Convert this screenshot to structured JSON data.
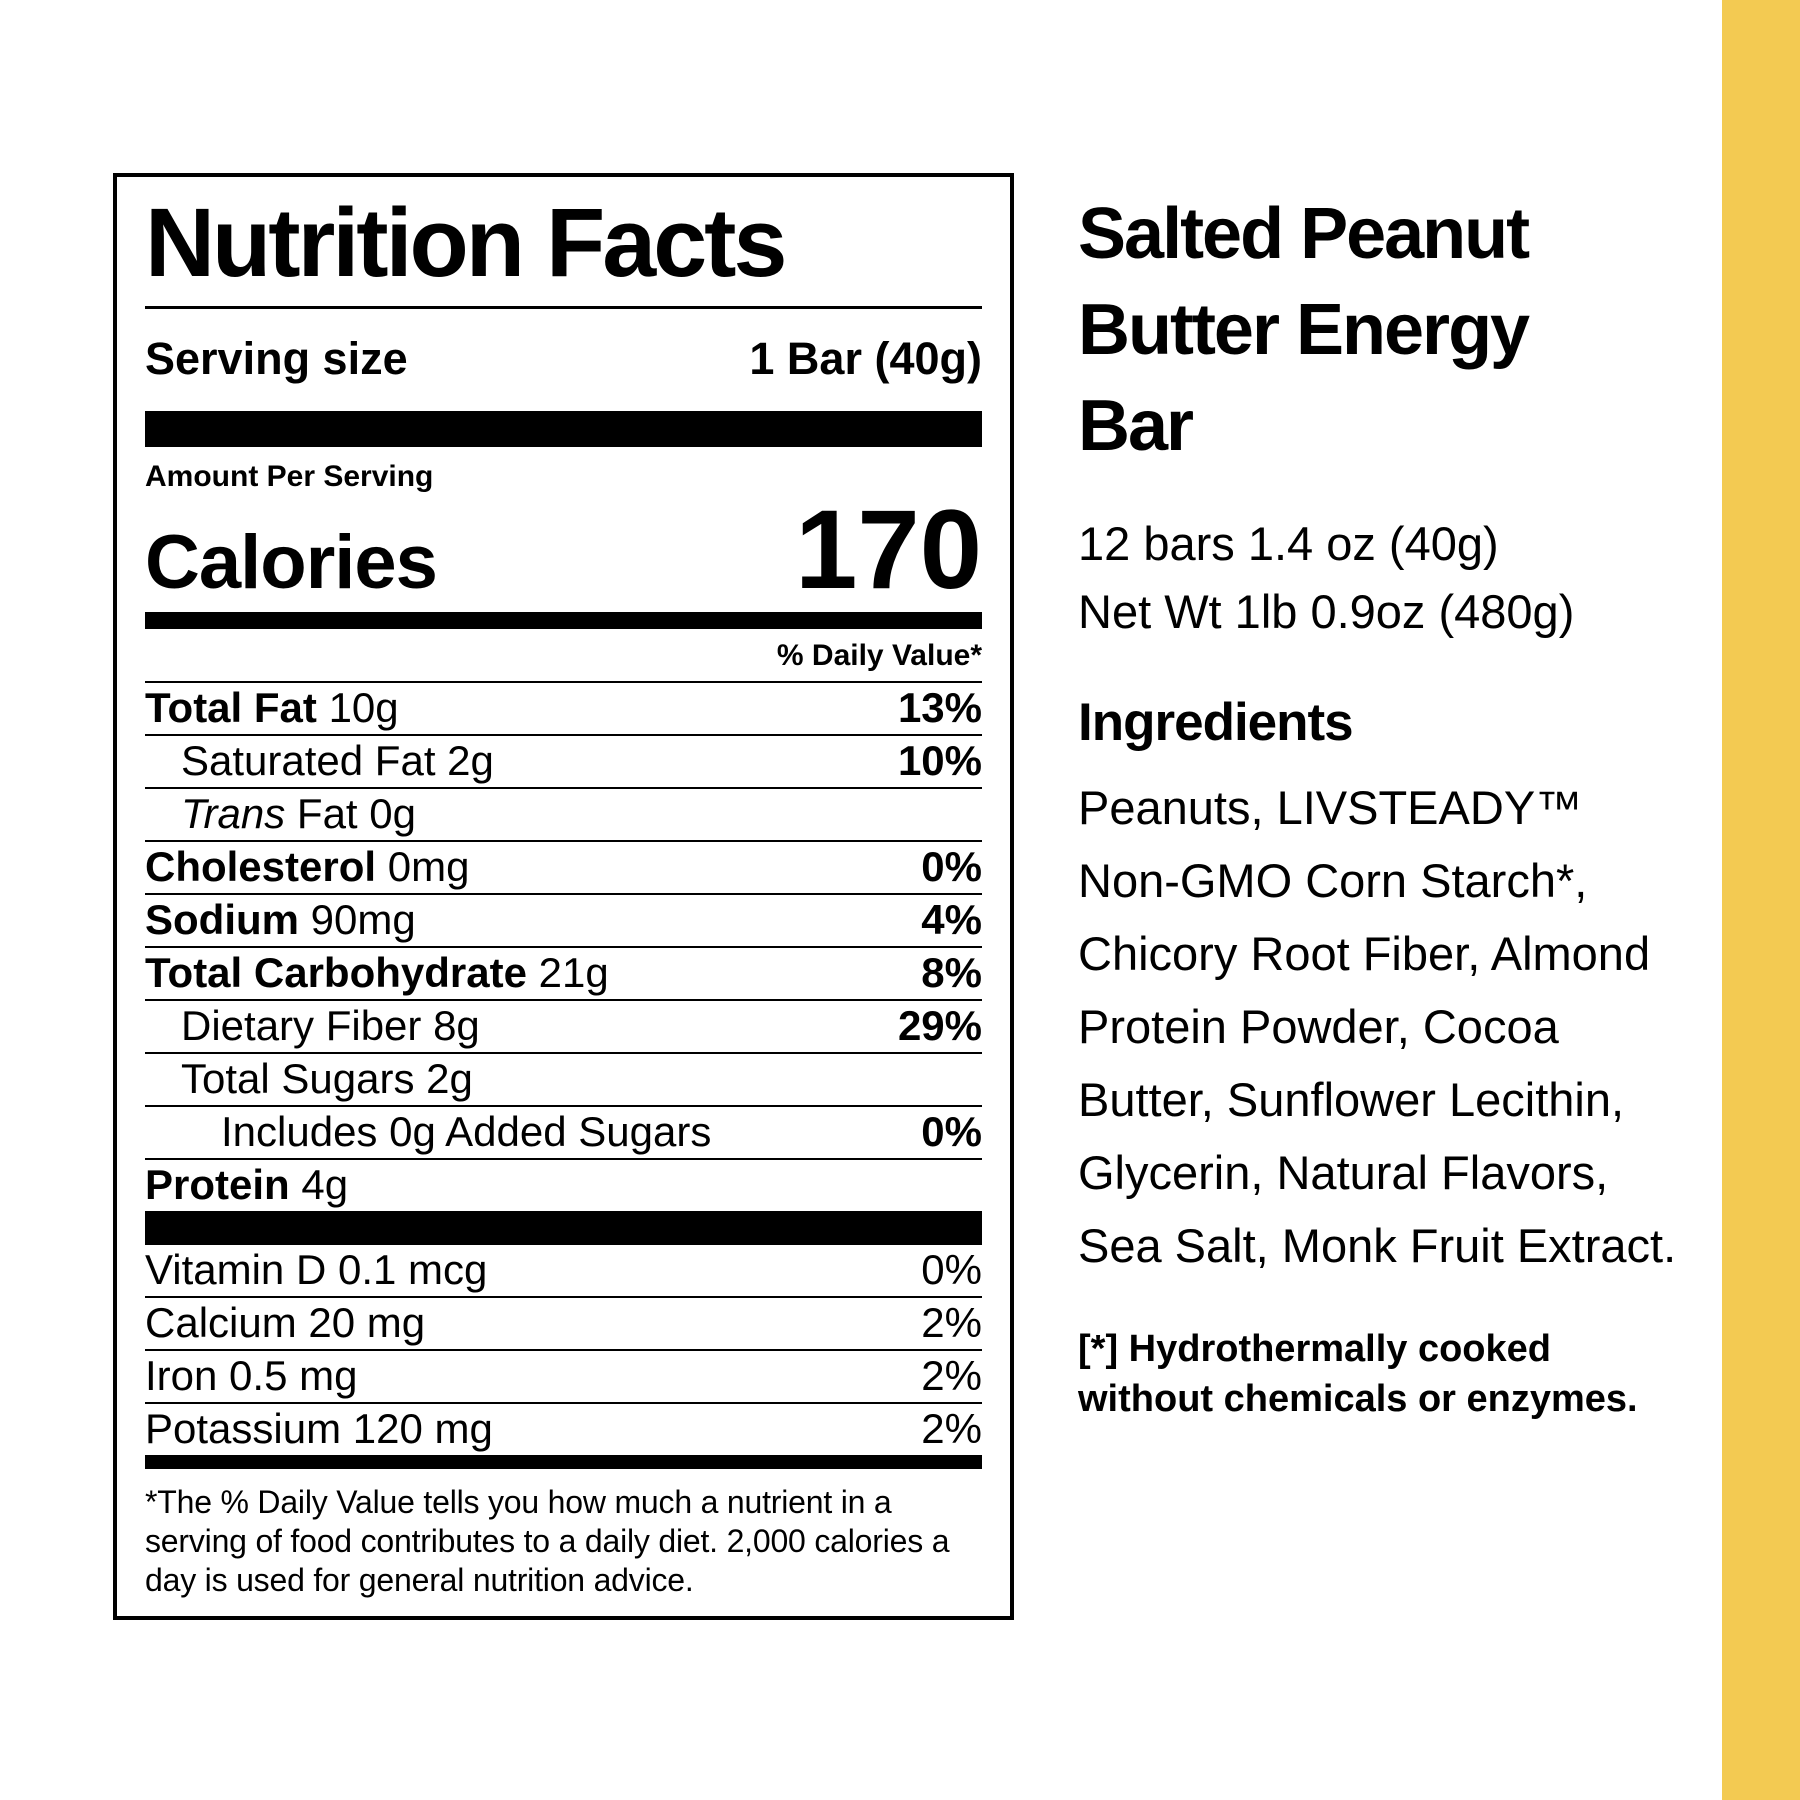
{
  "theme": {
    "background": "#FFFFFF",
    "text_color": "#000000",
    "stripe_color": "#F3CA52"
  },
  "label": {
    "title": "Nutrition Facts",
    "serving_label": "Serving size",
    "serving_value": "1 Bar (40g)",
    "amount_per_serving": "Amount Per Serving",
    "calories_label": "Calories",
    "calories_value": "170",
    "daily_value_header": "% Daily Value*",
    "rows": [
      {
        "name": "Total Fat",
        "amount": "10g",
        "dv": "13%"
      },
      {
        "name": "Saturated Fat",
        "amount": "2g",
        "dv": "10%"
      },
      {
        "name_italic": "Trans",
        "name": "Fat",
        "amount": "0g",
        "dv": ""
      },
      {
        "name": "Cholesterol",
        "amount": "0mg",
        "dv": "0%"
      },
      {
        "name": "Sodium",
        "amount": "90mg",
        "dv": "4%"
      },
      {
        "name": "Total Carbohydrate",
        "amount": "21g",
        "dv": "8%"
      },
      {
        "name": "Dietary Fiber",
        "amount": "8g",
        "dv": "29%"
      },
      {
        "name": "Total Sugars",
        "amount": "2g",
        "dv": ""
      },
      {
        "name": "Includes 0g Added Sugars",
        "amount": "",
        "dv": "0%"
      },
      {
        "name": "Protein",
        "amount": "4g",
        "dv": ""
      }
    ],
    "vitamins": [
      {
        "name": "Vitamin D 0.1 mcg",
        "dv": "0%"
      },
      {
        "name": "Calcium 20 mg",
        "dv": "2%"
      },
      {
        "name": "Iron 0.5 mg",
        "dv": "2%"
      },
      {
        "name": "Potassium 120 mg",
        "dv": "2%"
      }
    ],
    "footnote": "*The % Daily Value tells you how much a nutrient in a serving of food contributes to a daily diet. 2,000 calories a day is used for general nutrition advice."
  },
  "product": {
    "name": "Salted Peanut Butter Energy Bar",
    "pack_line1": "12 bars 1.4 oz (40g)",
    "pack_line2": "Net Wt 1lb 0.9oz (480g)",
    "ingredients_heading": "Ingredients",
    "ingredients_lines": [
      "Peanuts, LIVSTEADY™",
      "Non-GMO Corn Starch*,",
      "Chicory Root Fiber, Almond",
      "Protein Powder, Cocoa",
      "Butter, Sunflower Lecithin,",
      "Glycerin, Natural Flavors,",
      "Sea Salt, Monk Fruit Extract."
    ],
    "footnote_lines": [
      "[*] Hydrothermally cooked",
      "without chemicals or enzymes."
    ]
  }
}
